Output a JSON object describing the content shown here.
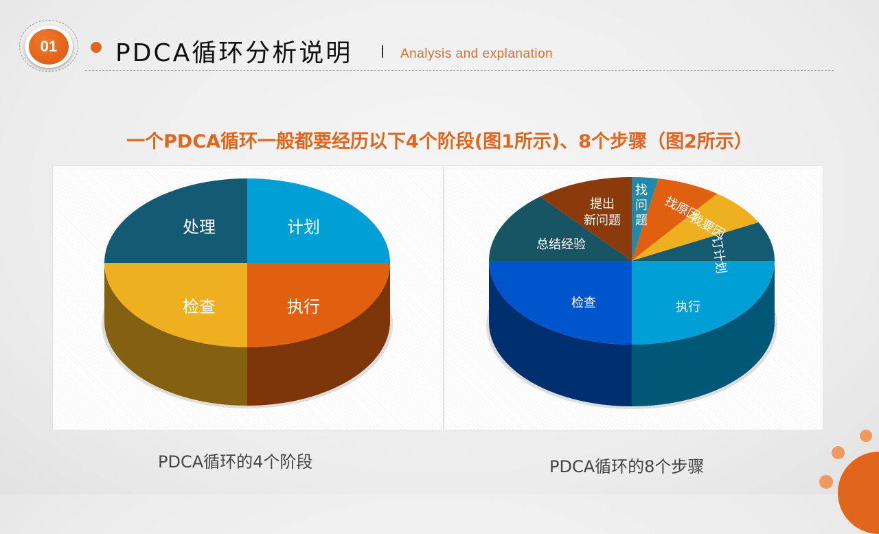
{
  "header": {
    "badge_number": "01",
    "title": "PDCA循环分析说明",
    "subtitle": "Analysis and explanation"
  },
  "headline": "一个PDCA循环一般都要经历以下4个阶段(图1所示)、8个步骤（图2所示）",
  "chart_data": [
    {
      "type": "pie",
      "title": "PDCA循环的4个阶段",
      "style": "3d",
      "categories": [
        "计划",
        "执行",
        "检查",
        "处理"
      ],
      "values": [
        25,
        25,
        25,
        25
      ],
      "colors": [
        "#00a0d6",
        "#e06010",
        "#eeb01f",
        "#155a75"
      ]
    },
    {
      "type": "pie",
      "title": "PDCA循环的8个步骤",
      "style": "3d",
      "categories": [
        "找问题",
        "找原因",
        "找要因",
        "订计划",
        "执行",
        "检查",
        "总结经验",
        "提出新问题"
      ],
      "values": [
        3,
        7.2,
        7.2,
        7.6,
        25,
        25,
        13.9,
        11.1
      ],
      "colors": [
        "#2289a8",
        "#e06010",
        "#eeb01f",
        "#145a70",
        "#00a0d6",
        "#0055cc",
        "#175565",
        "#8b3a0b"
      ]
    }
  ]
}
